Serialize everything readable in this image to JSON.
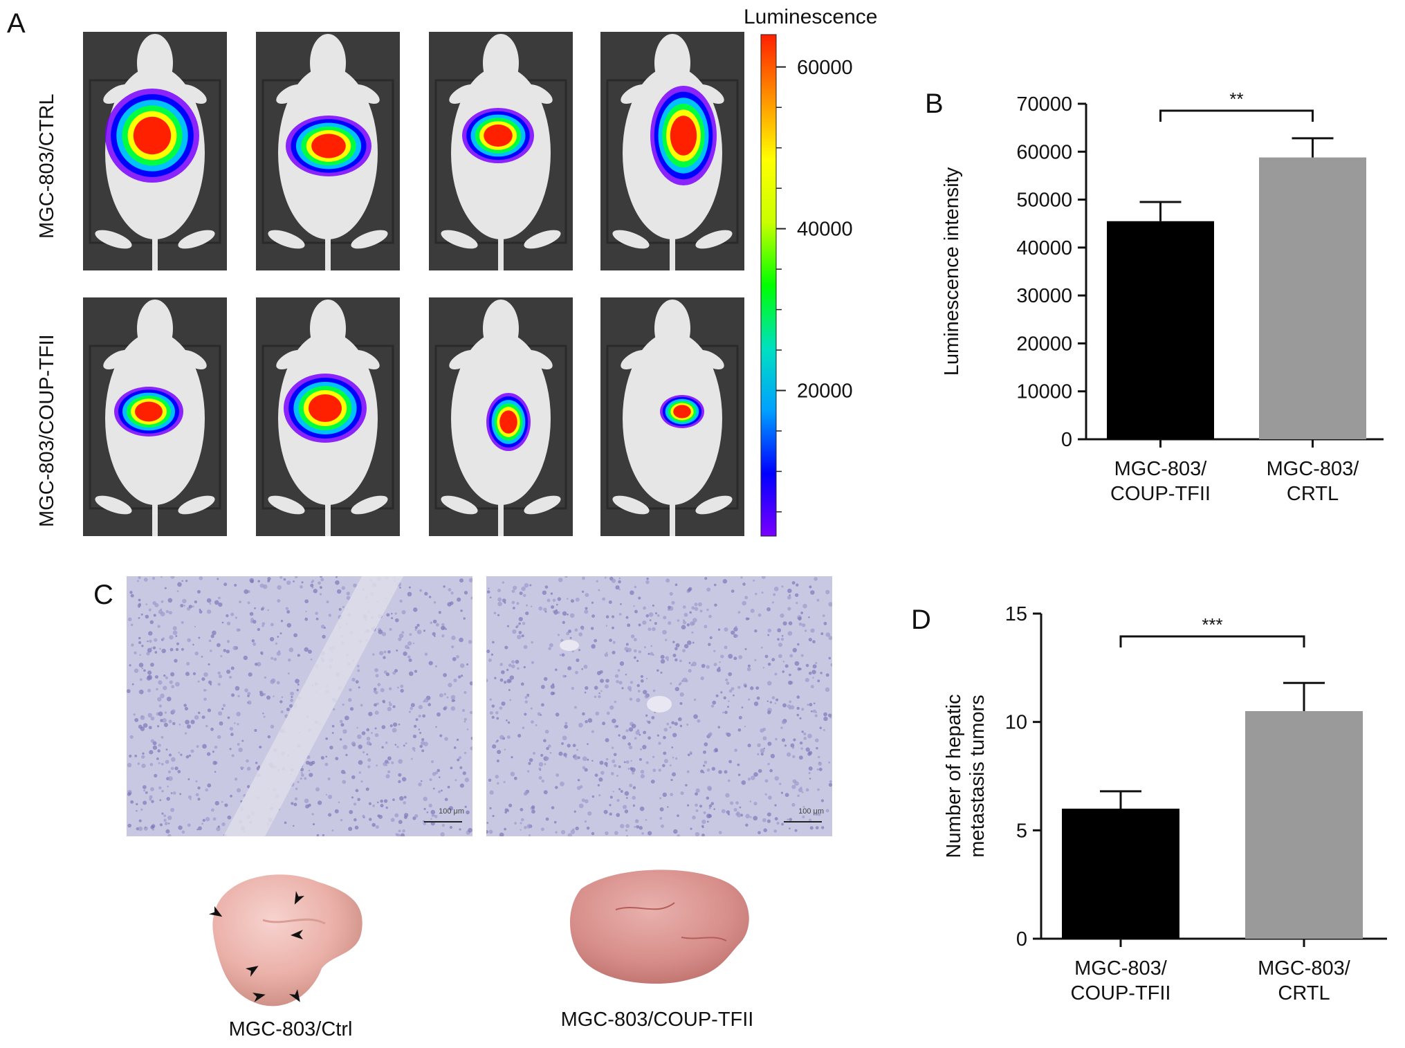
{
  "panels": {
    "a": {
      "letter": "A",
      "row_labels": [
        "MGC-803/CTRL",
        "MGC-803/COUP-TFII"
      ],
      "colorbar": {
        "title": "Luminescence",
        "ticks": [
          {
            "label": "60000",
            "value": 60000
          },
          {
            "label": "40000",
            "value": 40000
          },
          {
            "label": "20000",
            "value": 20000
          }
        ],
        "range": [
          2000,
          64000
        ],
        "colors": [
          "#7a00ff",
          "#0000ff",
          "#00a0ff",
          "#00e0c0",
          "#00ff00",
          "#c8ff00",
          "#ffff00",
          "#ff9000",
          "#ff2000"
        ]
      }
    },
    "c": {
      "letter": "C",
      "scale_bar_label": "100 μm",
      "captions": [
        "MGC-803/Ctrl",
        "MGC-803/COUP-TFII"
      ]
    },
    "b": {
      "letter": "B"
    },
    "d": {
      "letter": "D"
    }
  },
  "chart_data": [
    {
      "type": "bar",
      "panel": "B",
      "categories": [
        "MGC-803/\nCOUP-TFII",
        "MGC-803/\nCRTL"
      ],
      "category_lines": [
        [
          "MGC-803/",
          "COUP-TFII"
        ],
        [
          "MGC-803/",
          "CRTL"
        ]
      ],
      "values": [
        45500,
        58800
      ],
      "errors": [
        4000,
        4000
      ],
      "colors": [
        "#000000",
        "#9a9a9a"
      ],
      "ylabel": "Luminescence intensity",
      "ylim": [
        0,
        70000
      ],
      "yticks": [
        0,
        10000,
        20000,
        30000,
        40000,
        50000,
        60000,
        70000
      ],
      "significance": "**"
    },
    {
      "type": "bar",
      "panel": "D",
      "categories": [
        "MGC-803/\nCOUP-TFII",
        "MGC-803/\nCRTL"
      ],
      "category_lines": [
        [
          "MGC-803/",
          "COUP-TFII"
        ],
        [
          "MGC-803/",
          "CRTL"
        ]
      ],
      "values": [
        6.0,
        10.5
      ],
      "errors": [
        0.8,
        1.3
      ],
      "colors": [
        "#000000",
        "#9a9a9a"
      ],
      "ylabel_lines": [
        "Number of hepatic",
        "metastasis tumors"
      ],
      "ylim": [
        0,
        15
      ],
      "yticks": [
        0,
        5,
        10,
        15
      ],
      "significance": "***"
    }
  ]
}
